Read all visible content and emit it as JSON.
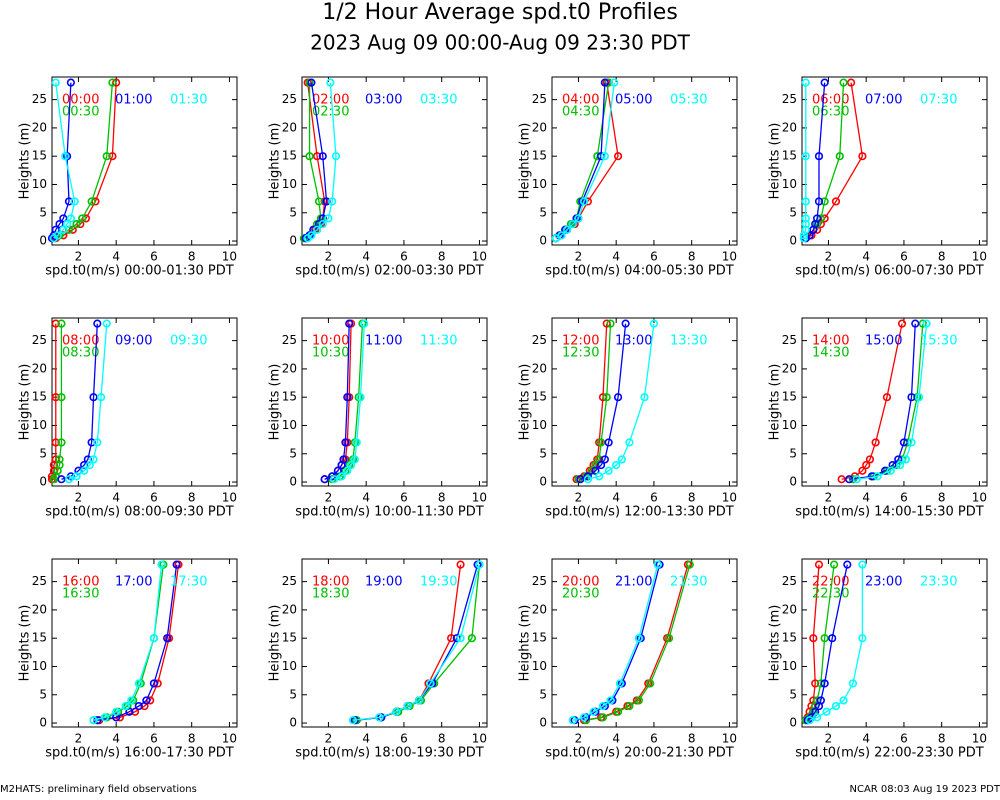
{
  "title": "1/2 Hour Average spd.t0 Profiles",
  "subtitle": "2023 Aug 09 00:00-Aug 09 23:30 PDT",
  "footer_left": "M2HATS: preliminary field observations",
  "footer_right": "NCAR 08:03 Aug 19 2023 PDT",
  "chart_data": [
    {
      "type": "line",
      "xlabel": "spd.t0(m/s) 00:00-01:30 PDT",
      "ylabel": "Heights (m)",
      "y": [
        28,
        15,
        7,
        4,
        3,
        2,
        1,
        0.5
      ],
      "xlim": [
        0.6,
        10.4
      ],
      "ylim": [
        -0.7,
        29
      ],
      "xticks": [
        2,
        4,
        6,
        8,
        10
      ],
      "yticks": [
        0,
        5,
        10,
        15,
        20,
        25
      ],
      "series": [
        {
          "name": "00:00",
          "color": "#ff0000",
          "values": [
            4.0,
            3.8,
            2.9,
            2.4,
            2.1,
            1.7,
            1.2,
            0.8
          ]
        },
        {
          "name": "00:30",
          "color": "#00c000",
          "values": [
            3.8,
            3.5,
            2.7,
            2.2,
            1.9,
            1.5,
            1.0,
            0.7
          ]
        },
        {
          "name": "01:00",
          "color": "#0000ff",
          "values": [
            1.6,
            1.4,
            1.5,
            1.2,
            1.0,
            0.8,
            0.7,
            0.6
          ]
        },
        {
          "name": "01:30",
          "color": "#00ffff",
          "values": [
            0.8,
            1.3,
            1.8,
            1.6,
            1.4,
            1.2,
            0.9,
            0.7
          ]
        }
      ]
    },
    {
      "type": "line",
      "xlabel": "spd.t0(m/s) 02:00-03:30 PDT",
      "ylabel": "Heights (m)",
      "y": [
        28,
        15,
        7,
        4,
        3,
        2,
        1,
        0.5
      ],
      "xlim": [
        0.6,
        10.4
      ],
      "ylim": [
        -0.7,
        29
      ],
      "xticks": [
        2,
        4,
        6,
        8,
        10
      ],
      "yticks": [
        0,
        5,
        10,
        15,
        20,
        25
      ],
      "series": [
        {
          "name": "02:00",
          "color": "#ff0000",
          "values": [
            0.9,
            1.4,
            1.8,
            1.7,
            1.6,
            1.3,
            1.0,
            0.8
          ]
        },
        {
          "name": "02:30",
          "color": "#00c000",
          "values": [
            1.0,
            1.0,
            1.5,
            1.6,
            1.4,
            1.2,
            1.0,
            0.7
          ]
        },
        {
          "name": "03:00",
          "color": "#0000ff",
          "values": [
            1.1,
            1.7,
            1.9,
            1.7,
            1.5,
            1.2,
            1.0,
            0.8
          ]
        },
        {
          "name": "03:30",
          "color": "#00ffff",
          "values": [
            2.1,
            2.4,
            2.2,
            2.0,
            1.7,
            1.4,
            1.1,
            0.9
          ]
        }
      ]
    },
    {
      "type": "line",
      "xlabel": "spd.t0(m/s) 04:00-05:30 PDT",
      "ylabel": "Heights (m)",
      "y": [
        28,
        15,
        7,
        4,
        3,
        2,
        1,
        0.5
      ],
      "xlim": [
        0.6,
        10.4
      ],
      "ylim": [
        -0.7,
        29
      ],
      "xticks": [
        2,
        4,
        6,
        8,
        10
      ],
      "yticks": [
        0,
        5,
        10,
        15,
        20,
        25
      ],
      "series": [
        {
          "name": "04:00",
          "color": "#ff0000",
          "values": [
            3.5,
            4.1,
            2.5,
            2.0,
            1.8,
            1.4,
            1.1,
            0.8
          ]
        },
        {
          "name": "04:30",
          "color": "#00c000",
          "values": [
            3.6,
            3.0,
            2.1,
            1.9,
            1.6,
            1.3,
            1.0,
            0.8
          ]
        },
        {
          "name": "05:00",
          "color": "#0000ff",
          "values": [
            3.4,
            3.2,
            2.2,
            1.9,
            1.7,
            1.3,
            1.0,
            0.8
          ]
        },
        {
          "name": "05:30",
          "color": "#00ffff",
          "values": [
            3.9,
            3.4,
            2.3,
            2.0,
            1.7,
            1.4,
            1.1,
            0.8
          ]
        }
      ]
    },
    {
      "type": "line",
      "xlabel": "spd.t0(m/s) 06:00-07:30 PDT",
      "ylabel": "Heights (m)",
      "y": [
        28,
        15,
        7,
        4,
        3,
        2,
        1,
        0.5
      ],
      "xlim": [
        0.6,
        10.4
      ],
      "ylim": [
        -0.7,
        29
      ],
      "xticks": [
        2,
        4,
        6,
        8,
        10
      ],
      "yticks": [
        0,
        5,
        10,
        15,
        20,
        25
      ],
      "series": [
        {
          "name": "06:00",
          "color": "#ff0000",
          "values": [
            3.2,
            3.8,
            2.4,
            1.8,
            1.6,
            1.4,
            1.1,
            0.8
          ]
        },
        {
          "name": "06:30",
          "color": "#00c000",
          "values": [
            2.8,
            2.6,
            1.8,
            1.6,
            1.4,
            1.2,
            1.0,
            0.8
          ]
        },
        {
          "name": "07:00",
          "color": "#0000ff",
          "values": [
            1.8,
            1.5,
            1.5,
            1.4,
            1.3,
            1.2,
            1.0,
            0.8
          ]
        },
        {
          "name": "07:30",
          "color": "#00ffff",
          "values": [
            0.8,
            0.8,
            0.8,
            0.8,
            0.8,
            0.8,
            0.7,
            0.7
          ]
        }
      ]
    },
    {
      "type": "line",
      "xlabel": "spd.t0(m/s) 08:00-09:30 PDT",
      "ylabel": "Heights (m)",
      "y": [
        28,
        15,
        7,
        4,
        3,
        2,
        1,
        0.5
      ],
      "xlim": [
        0.6,
        10.4
      ],
      "ylim": [
        -0.7,
        29
      ],
      "xticks": [
        2,
        4,
        6,
        8,
        10
      ],
      "yticks": [
        0,
        5,
        10,
        15,
        20,
        25
      ],
      "series": [
        {
          "name": "08:00",
          "color": "#ff0000",
          "values": [
            0.8,
            0.8,
            0.8,
            0.8,
            0.7,
            0.7,
            0.6,
            0.6
          ]
        },
        {
          "name": "08:30",
          "color": "#00c000",
          "values": [
            1.1,
            1.1,
            1.1,
            1.0,
            1.0,
            0.9,
            0.8,
            0.7
          ]
        },
        {
          "name": "09:00",
          "color": "#0000ff",
          "values": [
            3.0,
            2.8,
            2.7,
            2.5,
            2.3,
            2.0,
            1.6,
            1.1
          ]
        },
        {
          "name": "09:30",
          "color": "#00ffff",
          "values": [
            3.5,
            3.2,
            3.0,
            2.8,
            2.6,
            2.3,
            1.9,
            1.5
          ]
        }
      ]
    },
    {
      "type": "line",
      "xlabel": "spd.t0(m/s) 10:00-11:30 PDT",
      "ylabel": "Heights (m)",
      "y": [
        28,
        15,
        7,
        4,
        3,
        2,
        1,
        0.5
      ],
      "xlim": [
        0.6,
        10.4
      ],
      "ylim": [
        -0.7,
        29
      ],
      "xticks": [
        2,
        4,
        6,
        8,
        10
      ],
      "yticks": [
        0,
        5,
        10,
        15,
        20,
        25
      ],
      "series": [
        {
          "name": "10:00",
          "color": "#ff0000",
          "values": [
            3.2,
            3.1,
            3.0,
            2.9,
            2.7,
            2.5,
            2.2,
            1.8
          ]
        },
        {
          "name": "10:30",
          "color": "#00c000",
          "values": [
            3.8,
            3.6,
            3.4,
            3.3,
            3.1,
            2.9,
            2.6,
            2.2
          ]
        },
        {
          "name": "11:00",
          "color": "#0000ff",
          "values": [
            3.1,
            3.0,
            2.9,
            2.8,
            2.7,
            2.5,
            2.2,
            1.8
          ]
        },
        {
          "name": "11:30",
          "color": "#00ffff",
          "values": [
            3.9,
            3.7,
            3.5,
            3.4,
            3.2,
            3.0,
            2.7,
            2.3
          ]
        }
      ]
    },
    {
      "type": "line",
      "xlabel": "spd.t0(m/s) 12:00-13:30 PDT",
      "ylabel": "Heights (m)",
      "y": [
        28,
        15,
        7,
        4,
        3,
        2,
        1,
        0.5
      ],
      "xlim": [
        0.6,
        10.4
      ],
      "ylim": [
        -0.7,
        29
      ],
      "xticks": [
        2,
        4,
        6,
        8,
        10
      ],
      "yticks": [
        0,
        5,
        10,
        15,
        20,
        25
      ],
      "series": [
        {
          "name": "12:00",
          "color": "#ff0000",
          "values": [
            3.5,
            3.3,
            3.1,
            3.0,
            2.8,
            2.6,
            2.3,
            1.9
          ]
        },
        {
          "name": "12:30",
          "color": "#00c000",
          "values": [
            3.7,
            3.5,
            3.2,
            3.1,
            2.9,
            2.7,
            2.4,
            2.0
          ]
        },
        {
          "name": "13:00",
          "color": "#0000ff",
          "values": [
            4.5,
            4.1,
            3.6,
            3.4,
            3.2,
            2.9,
            2.5,
            2.1
          ]
        },
        {
          "name": "13:30",
          "color": "#00ffff",
          "values": [
            6.0,
            5.5,
            4.7,
            4.3,
            4.0,
            3.6,
            3.1,
            2.5
          ]
        }
      ]
    },
    {
      "type": "line",
      "xlabel": "spd.t0(m/s) 14:00-15:30 PDT",
      "ylabel": "Heights (m)",
      "y": [
        28,
        15,
        7,
        4,
        3,
        2,
        1,
        0.5
      ],
      "xlim": [
        0.6,
        10.4
      ],
      "ylim": [
        -0.7,
        29
      ],
      "xticks": [
        2,
        4,
        6,
        8,
        10
      ],
      "yticks": [
        0,
        5,
        10,
        15,
        20,
        25
      ],
      "series": [
        {
          "name": "14:00",
          "color": "#ff0000",
          "values": [
            5.9,
            5.1,
            4.5,
            4.2,
            4.0,
            3.8,
            3.4,
            2.7
          ]
        },
        {
          "name": "14:30",
          "color": "#00c000",
          "values": [
            7.0,
            6.7,
            6.2,
            5.9,
            5.6,
            5.1,
            4.4,
            3.3
          ]
        },
        {
          "name": "15:00",
          "color": "#0000ff",
          "values": [
            6.6,
            6.4,
            6.0,
            5.7,
            5.4,
            5.0,
            4.3,
            3.1
          ]
        },
        {
          "name": "15:30",
          "color": "#00ffff",
          "values": [
            7.2,
            6.8,
            6.4,
            6.1,
            5.8,
            5.3,
            4.6,
            3.5
          ]
        }
      ]
    },
    {
      "type": "line",
      "xlabel": "spd.t0(m/s) 16:00-17:30 PDT",
      "ylabel": "Heights (m)",
      "y": [
        28,
        15,
        7,
        4,
        3,
        2,
        1,
        0.5
      ],
      "xlim": [
        0.6,
        10.4
      ],
      "ylim": [
        -0.7,
        29
      ],
      "xticks": [
        2,
        4,
        6,
        8,
        10
      ],
      "yticks": [
        0,
        5,
        10,
        15,
        20,
        25
      ],
      "series": [
        {
          "name": "16:00",
          "color": "#ff0000",
          "values": [
            7.3,
            6.8,
            6.2,
            5.8,
            5.5,
            5.0,
            4.2,
            3.1
          ]
        },
        {
          "name": "16:30",
          "color": "#00c000",
          "values": [
            6.5,
            6.0,
            5.3,
            4.9,
            4.6,
            4.1,
            3.5,
            2.8
          ]
        },
        {
          "name": "17:00",
          "color": "#0000ff",
          "values": [
            7.2,
            6.7,
            6.0,
            5.6,
            5.2,
            4.7,
            4.0,
            3.0
          ]
        },
        {
          "name": "17:30",
          "color": "#00ffff",
          "values": [
            6.4,
            6.0,
            5.2,
            4.8,
            4.5,
            4.0,
            3.4,
            2.8
          ]
        }
      ]
    },
    {
      "type": "line",
      "xlabel": "spd.t0(m/s) 18:00-19:30 PDT",
      "ylabel": "Heights (m)",
      "y": [
        28,
        15,
        7,
        4,
        3,
        2,
        1,
        0.5
      ],
      "xlim": [
        0.6,
        10.4
      ],
      "ylim": [
        -0.7,
        29
      ],
      "xticks": [
        2,
        4,
        6,
        8,
        10
      ],
      "yticks": [
        0,
        5,
        10,
        15,
        20,
        25
      ],
      "series": [
        {
          "name": "18:00",
          "color": "#ff0000",
          "values": [
            9.0,
            8.5,
            7.3,
            6.8,
            6.2,
            5.6,
            4.7,
            3.4
          ]
        },
        {
          "name": "18:30",
          "color": "#00c000",
          "values": [
            10.0,
            9.6,
            7.6,
            6.9,
            6.3,
            5.7,
            4.8,
            3.5
          ]
        },
        {
          "name": "19:00",
          "color": "#0000ff",
          "values": [
            9.9,
            8.8,
            7.5,
            6.8,
            6.2,
            5.6,
            4.8,
            3.4
          ]
        },
        {
          "name": "19:30",
          "color": "#00ffff",
          "values": [
            10.0,
            9.0,
            7.4,
            6.8,
            6.2,
            5.6,
            4.7,
            3.3
          ]
        }
      ]
    },
    {
      "type": "line",
      "xlabel": "spd.t0(m/s) 20:00-21:30 PDT",
      "ylabel": "Heights (m)",
      "y": [
        28,
        15,
        7,
        4,
        3,
        2,
        1,
        0.5
      ],
      "xlim": [
        0.6,
        10.4
      ],
      "ylim": [
        -0.7,
        29
      ],
      "xticks": [
        2,
        4,
        6,
        8,
        10
      ],
      "yticks": [
        0,
        5,
        10,
        15,
        20,
        25
      ],
      "series": [
        {
          "name": "20:00",
          "color": "#ff0000",
          "values": [
            7.8,
            6.7,
            5.7,
            5.1,
            4.6,
            4.0,
            3.2,
            2.3
          ]
        },
        {
          "name": "20:30",
          "color": "#00c000",
          "values": [
            7.9,
            6.8,
            5.8,
            5.2,
            4.7,
            4.1,
            3.3,
            2.4
          ]
        },
        {
          "name": "21:00",
          "color": "#0000ff",
          "values": [
            6.3,
            5.3,
            4.3,
            3.8,
            3.4,
            2.9,
            2.4,
            1.8
          ]
        },
        {
          "name": "21:30",
          "color": "#00ffff",
          "values": [
            6.2,
            5.2,
            4.2,
            3.7,
            3.3,
            2.8,
            2.3,
            1.7
          ]
        }
      ]
    },
    {
      "type": "line",
      "xlabel": "spd.t0(m/s) 22:00-23:30 PDT",
      "ylabel": "Heights (m)",
      "y": [
        28,
        15,
        7,
        4,
        3,
        2,
        1,
        0.5
      ],
      "xlim": [
        0.6,
        10.4
      ],
      "ylim": [
        -0.7,
        29
      ],
      "xticks": [
        2,
        4,
        6,
        8,
        10
      ],
      "yticks": [
        0,
        5,
        10,
        15,
        20,
        25
      ],
      "series": [
        {
          "name": "22:00",
          "color": "#ff0000",
          "values": [
            1.5,
            1.2,
            1.3,
            1.2,
            1.1,
            1.0,
            0.9,
            0.8
          ]
        },
        {
          "name": "22:30",
          "color": "#00c000",
          "values": [
            2.3,
            1.8,
            1.6,
            1.4,
            1.3,
            1.2,
            1.0,
            0.8
          ]
        },
        {
          "name": "23:00",
          "color": "#0000ff",
          "values": [
            3.0,
            2.2,
            1.8,
            1.6,
            1.5,
            1.3,
            1.1,
            0.9
          ]
        },
        {
          "name": "23:30",
          "color": "#00ffff",
          "values": [
            3.8,
            3.8,
            3.3,
            2.8,
            2.4,
            1.9,
            1.4,
            1.0
          ]
        }
      ]
    }
  ]
}
